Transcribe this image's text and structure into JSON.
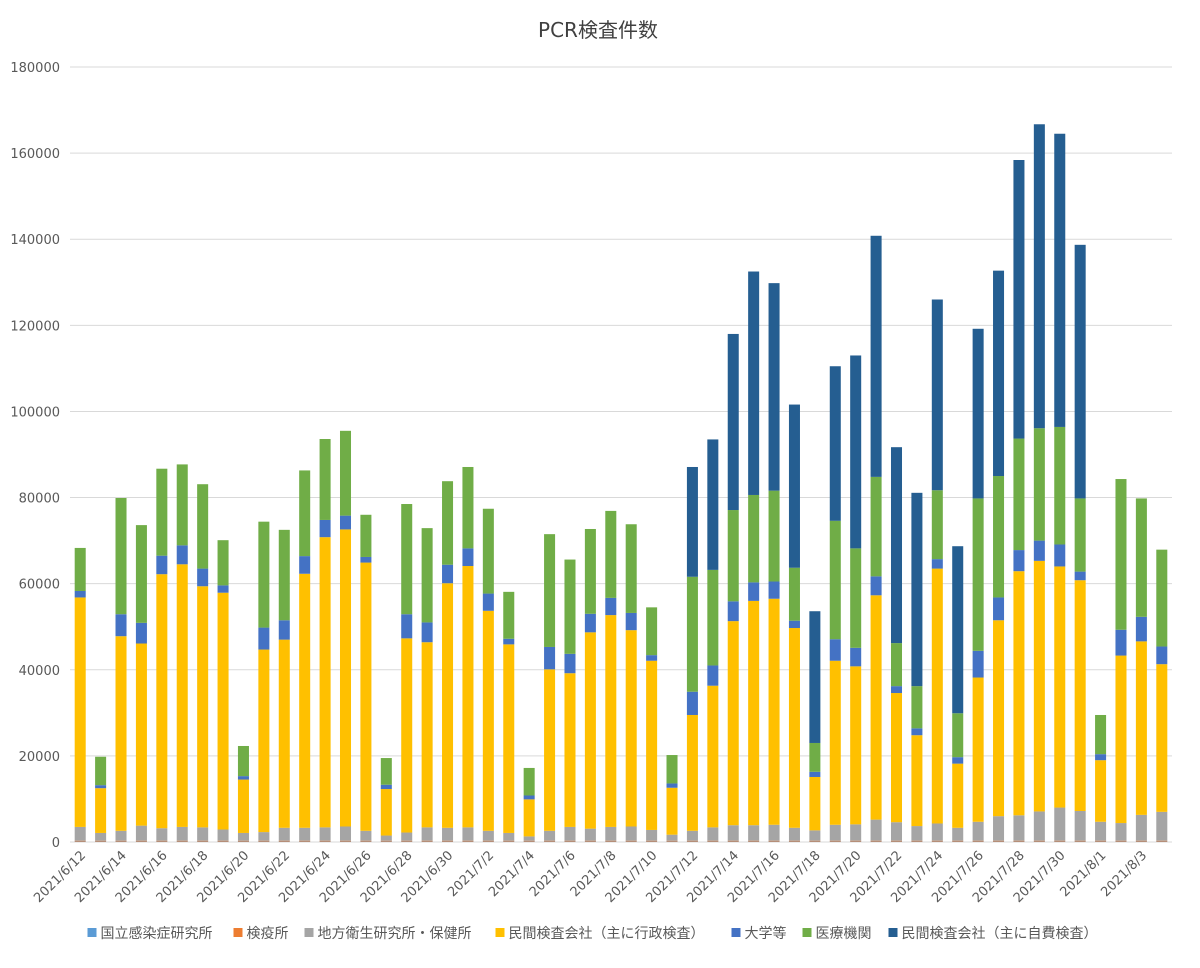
{
  "chart_data": {
    "type": "bar",
    "stacked": true,
    "title": "PCR検査件数",
    "ylim": [
      0,
      180000
    ],
    "yticks": [
      0,
      20000,
      40000,
      60000,
      80000,
      100000,
      120000,
      140000,
      160000,
      180000
    ],
    "grid": true,
    "legend_position": "bottom",
    "categories": [
      "2021/6/12",
      "2021/6/13",
      "2021/6/14",
      "2021/6/15",
      "2021/6/16",
      "2021/6/17",
      "2021/6/18",
      "2021/6/19",
      "2021/6/20",
      "2021/6/21",
      "2021/6/22",
      "2021/6/23",
      "2021/6/24",
      "2021/6/25",
      "2021/6/26",
      "2021/6/27",
      "2021/6/28",
      "2021/6/29",
      "2021/6/30",
      "2021/7/1",
      "2021/7/2",
      "2021/7/3",
      "2021/7/4",
      "2021/7/5",
      "2021/7/6",
      "2021/7/7",
      "2021/7/8",
      "2021/7/9",
      "2021/7/10",
      "2021/7/11",
      "2021/7/12",
      "2021/7/13",
      "2021/7/14",
      "2021/7/15",
      "2021/7/16",
      "2021/7/17",
      "2021/7/18",
      "2021/7/19",
      "2021/7/20",
      "2021/7/21",
      "2021/7/22",
      "2021/7/23",
      "2021/7/24",
      "2021/7/25",
      "2021/7/26",
      "2021/7/27",
      "2021/7/28",
      "2021/7/29",
      "2021/7/30",
      "2021/7/31",
      "2021/8/1",
      "2021/8/2",
      "2021/8/3",
      "2021/8/4"
    ],
    "x_tick_labels": [
      "2021/6/12",
      "2021/6/14",
      "2021/6/16",
      "2021/6/18",
      "2021/6/20",
      "2021/6/22",
      "2021/6/24",
      "2021/6/26",
      "2021/6/28",
      "2021/6/30",
      "2021/7/2",
      "2021/7/4",
      "2021/7/6",
      "2021/7/8",
      "2021/7/10",
      "2021/7/12",
      "2021/7/14",
      "2021/7/16",
      "2021/7/18",
      "2021/7/20",
      "2021/7/22",
      "2021/7/24",
      "2021/7/26",
      "2021/7/28",
      "2021/7/30",
      "2021/8/1",
      "2021/8/3"
    ],
    "series": [
      {
        "name": "国立感染症研究所",
        "color": "#5B9BD5",
        "values": [
          100,
          100,
          100,
          100,
          100,
          100,
          100,
          100,
          100,
          100,
          100,
          100,
          100,
          100,
          100,
          100,
          100,
          100,
          100,
          100,
          100,
          100,
          100,
          100,
          100,
          100,
          100,
          100,
          100,
          100,
          100,
          100,
          100,
          100,
          100,
          100,
          100,
          100,
          100,
          100,
          100,
          100,
          100,
          100,
          100,
          100,
          100,
          100,
          100,
          100,
          100,
          100,
          100,
          100
        ]
      },
      {
        "name": "検疫所",
        "color": "#ED7D31",
        "values": [
          200,
          200,
          200,
          200,
          200,
          200,
          200,
          200,
          200,
          200,
          200,
          200,
          200,
          200,
          200,
          200,
          200,
          200,
          200,
          200,
          200,
          200,
          200,
          200,
          200,
          200,
          200,
          200,
          200,
          200,
          200,
          200,
          200,
          200,
          200,
          200,
          200,
          200,
          200,
          200,
          200,
          200,
          200,
          200,
          200,
          200,
          200,
          200,
          200,
          200,
          200,
          200,
          200,
          200
        ]
      },
      {
        "name": "地方衛生研究所・保健所",
        "color": "#A5A5A5",
        "values": [
          3200,
          1800,
          2300,
          3500,
          2900,
          3200,
          3100,
          2600,
          1800,
          2000,
          3000,
          3000,
          3100,
          3300,
          2300,
          1200,
          1900,
          3100,
          3000,
          3100,
          2300,
          1800,
          1000,
          2300,
          3200,
          2800,
          3200,
          3300,
          2500,
          1400,
          2300,
          3100,
          3600,
          3600,
          3700,
          3000,
          2400,
          3700,
          3800,
          4900,
          4300,
          3400,
          4000,
          3000,
          4400,
          5700,
          5900,
          6800,
          7700,
          6900,
          4400,
          4100,
          6000,
          6700
        ]
      },
      {
        "name": "民間検査会社（主に行政検査）",
        "color": "#FFC000",
        "values": [
          53300,
          10400,
          45200,
          42300,
          59000,
          61000,
          56000,
          55000,
          12400,
          42400,
          43700,
          59000,
          67400,
          69000,
          62300,
          10800,
          45100,
          43000,
          56800,
          60700,
          51100,
          43800,
          8600,
          37500,
          35700,
          45600,
          49200,
          45600,
          39300,
          10900,
          26900,
          32900,
          47400,
          52100,
          52500,
          46400,
          12400,
          38100,
          36700,
          52100,
          30000,
          21100,
          59200,
          14900,
          33500,
          45500,
          56700,
          58200,
          56000,
          53600,
          14300,
          38900,
          40300,
          34300
        ]
      },
      {
        "name": "大学等",
        "color": "#4472C4",
        "values": [
          1500,
          700,
          5100,
          4800,
          4300,
          4400,
          4100,
          1700,
          800,
          5100,
          4500,
          4100,
          4000,
          3200,
          1300,
          1000,
          5600,
          4600,
          4300,
          4100,
          4000,
          1300,
          900,
          5200,
          4500,
          4300,
          4000,
          4000,
          1300,
          1000,
          5400,
          4700,
          4600,
          4300,
          4000,
          1700,
          1200,
          5000,
          4300,
          4400,
          1600,
          1600,
          2200,
          1500,
          6200,
          5300,
          4900,
          4700,
          5100,
          2000,
          1400,
          6000,
          5700,
          4100
        ]
      },
      {
        "name": "医療機関",
        "color": "#70AD47",
        "values": [
          10000,
          6600,
          27000,
          22700,
          20200,
          18800,
          19600,
          10500,
          7000,
          24600,
          21000,
          19900,
          18800,
          19700,
          9800,
          6200,
          25600,
          21900,
          19400,
          18900,
          19700,
          10900,
          6400,
          26200,
          21900,
          19700,
          20200,
          20600,
          11100,
          6600,
          26700,
          22200,
          21200,
          20300,
          21100,
          12300,
          6700,
          27500,
          23100,
          23100,
          10000,
          9800,
          16000,
          10200,
          35400,
          28200,
          25900,
          26100,
          27300,
          17000,
          9100,
          35000,
          27500,
          22500
        ]
      },
      {
        "name": "民間検査会社（主に自費検査）",
        "color": "#255E91",
        "values": [
          0,
          0,
          0,
          0,
          0,
          0,
          0,
          0,
          0,
          0,
          0,
          0,
          0,
          0,
          0,
          0,
          0,
          0,
          0,
          0,
          0,
          0,
          0,
          0,
          0,
          0,
          0,
          0,
          0,
          0,
          25500,
          30300,
          40900,
          51900,
          48200,
          37900,
          30600,
          35900,
          44800,
          56000,
          45500,
          44900,
          44300,
          38800,
          39400,
          47700,
          64700,
          70600,
          68100,
          58900,
          0,
          0,
          0,
          0
        ]
      }
    ]
  }
}
